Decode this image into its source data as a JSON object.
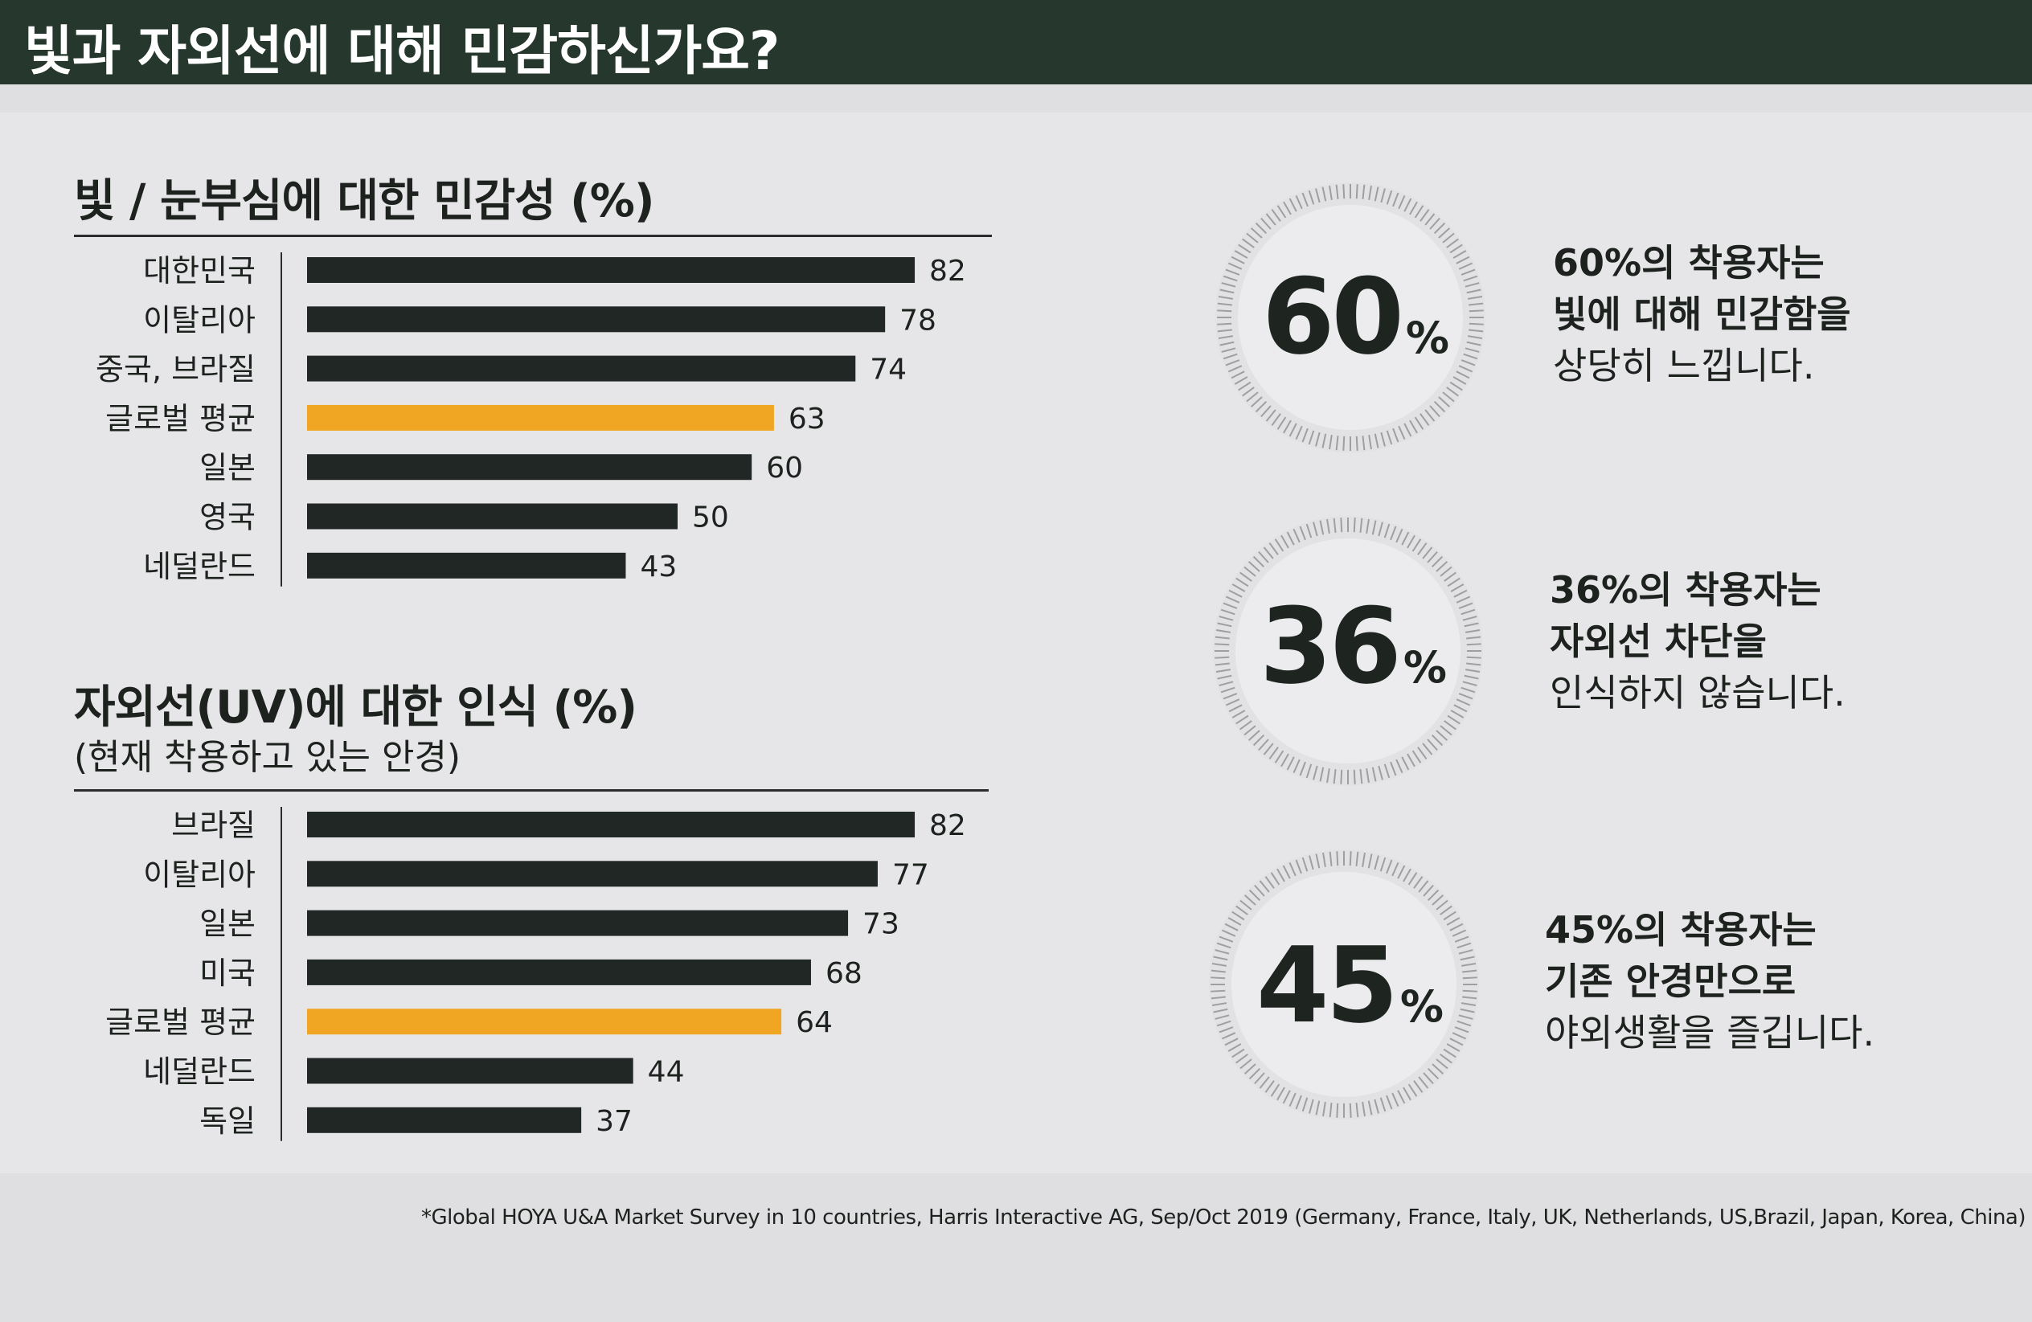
{
  "header": {
    "title": "빛과 자외선에 대해 민감하신가요?"
  },
  "colors": {
    "header_bg": "#26382d",
    "bar_dark": "#212724",
    "bar_accent": "#f0a623"
  },
  "chart_data": [
    {
      "type": "bar",
      "orientation": "horizontal",
      "title": "빛 / 눈부심에 대한 민감성 (%)",
      "categories": [
        "대한민국",
        "이탈리아",
        "중국, 브라질",
        "글로벌 평균",
        "일본",
        "영국",
        "네덜란드"
      ],
      "values": [
        82,
        78,
        74,
        63,
        60,
        50,
        43
      ],
      "highlight": "글로벌 평균",
      "xlim": [
        0,
        100
      ]
    },
    {
      "type": "bar",
      "orientation": "horizontal",
      "title": "자외선(UV)에 대한 인식 (%)",
      "subtitle": "(현재 착용하고 있는 안경)",
      "categories": [
        "브라질",
        "이탈리아",
        "일본",
        "미국",
        "글로벌 평균",
        "네덜란드",
        "독일"
      ],
      "values": [
        82,
        77,
        73,
        68,
        64,
        44,
        37
      ],
      "highlight": "글로벌 평균",
      "xlim": [
        0,
        100
      ]
    }
  ],
  "stats": [
    {
      "value": "60",
      "unit": "%",
      "line1": "60%의 착용자는",
      "line2": "빛에 대해 민감함을",
      "line3": "상당히 느낍니다."
    },
    {
      "value": "36",
      "unit": "%",
      "line1": "36%의 착용자는",
      "line2": "자외선 차단을",
      "line3": "인식하지 않습니다."
    },
    {
      "value": "45",
      "unit": "%",
      "line1": "45%의 착용자는",
      "line2": "기존 안경만으로",
      "line3": "야외생활을 즐깁니다."
    }
  ],
  "footnote": "*Global HOYA U&A Market Survey in 10 countries, Harris Interactive AG, Sep/Oct 2019 (Germany, France, Italy, UK, Netherlands, US,Brazil, Japan, Korea, China)"
}
